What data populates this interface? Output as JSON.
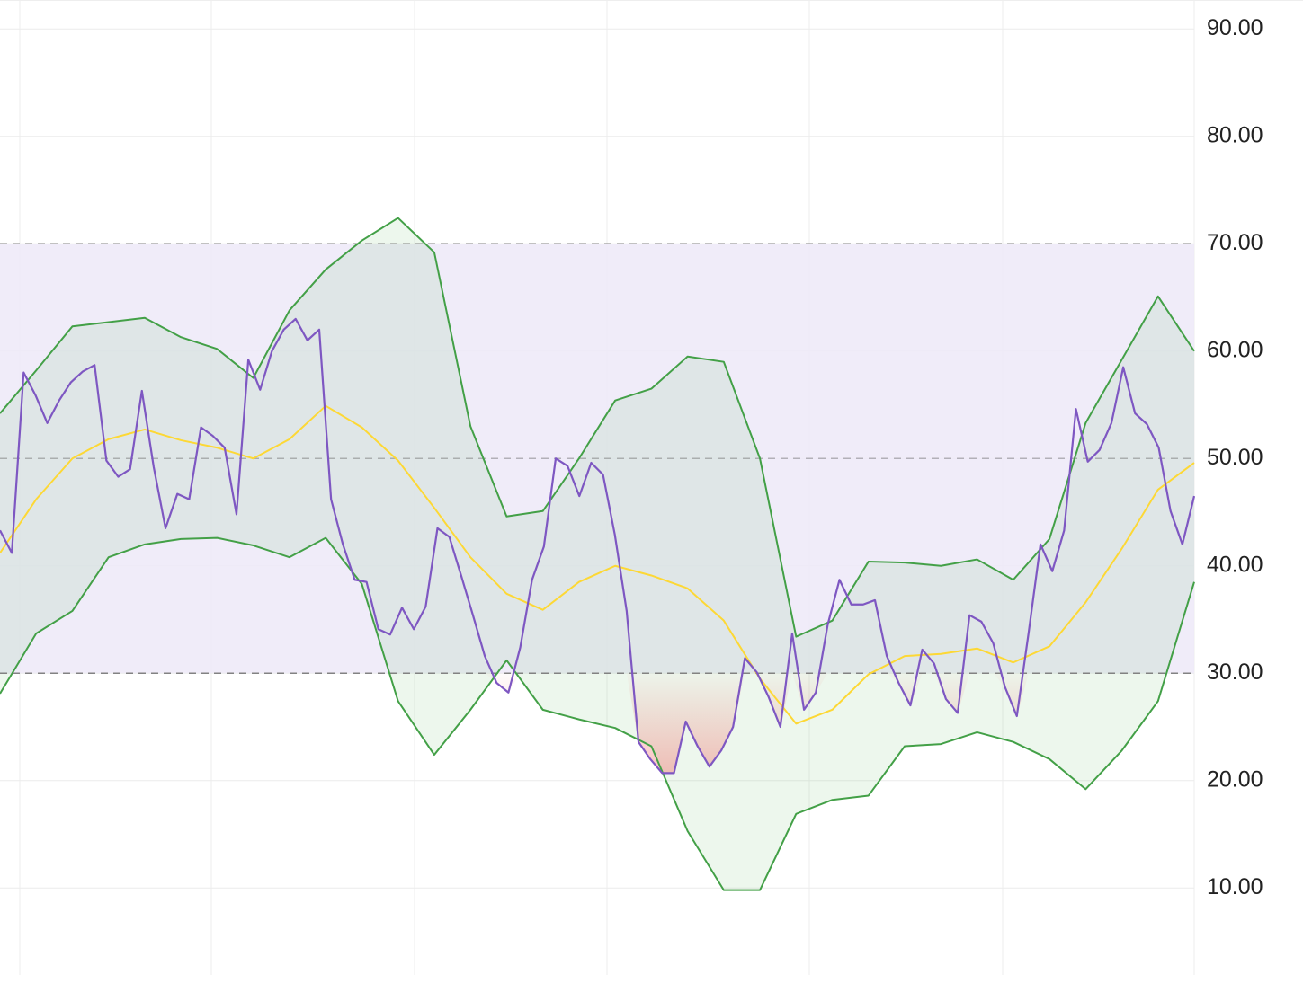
{
  "chart_data": {
    "type": "line",
    "ylim": [
      1.9,
      92.7
    ],
    "yticks": [
      {
        "value": 90,
        "label": "90.00"
      },
      {
        "value": 80,
        "label": "80.00"
      },
      {
        "value": 70,
        "label": "70.00"
      },
      {
        "value": 60,
        "label": "60.00"
      },
      {
        "value": 50,
        "label": "50.00"
      },
      {
        "value": 40,
        "label": "40.00"
      },
      {
        "value": 30,
        "label": "30.00"
      },
      {
        "value": 20,
        "label": "20.00"
      },
      {
        "value": 10,
        "label": "10.00"
      }
    ],
    "grid": true,
    "levels": [
      70,
      50,
      30
    ],
    "level_zone_color": "#ede9f8",
    "band_color": "#4caf50",
    "oversold_color": "#ef5350",
    "series": [
      {
        "color": "#7e57c2",
        "values": [
          43.3,
          41.2,
          58,
          55.9,
          53.3,
          55.4,
          57.1,
          58.1,
          58.7,
          49.8,
          48.3,
          49,
          56.3,
          49.2,
          43.5,
          46.7,
          46.2,
          52.9,
          52.1,
          51,
          44.8,
          59.2,
          56.4,
          60,
          62,
          63,
          61,
          62,
          46.2,
          42,
          38.7,
          38.5,
          34.1,
          33.6,
          36.1,
          34.1,
          36.2,
          43.5,
          42.7,
          39.1,
          35.4,
          31.6,
          29.1,
          28.2,
          32.4,
          38.7,
          41.8,
          50,
          49.3,
          46.5,
          49.6,
          48.5,
          42.9,
          35.8,
          23.6,
          22,
          20.7,
          20.7,
          25.5,
          23.2,
          21.3,
          22.8,
          25,
          31.4,
          30.1,
          27.8,
          25,
          33.7,
          26.6,
          28.2,
          34.5,
          38.7,
          36.4,
          36.4,
          36.8,
          31.6,
          29.1,
          27,
          32.2,
          30.9,
          27.6,
          26.3,
          35.4,
          34.8,
          32.8,
          28.7,
          26,
          33.8,
          42,
          39.5,
          43.3,
          54.6,
          49.7,
          50.8,
          53.3,
          58.5,
          54.2,
          53.2,
          51,
          45.1,
          42,
          46.5
        ]
      },
      {
        "color": "#fdd835",
        "values": [
          41.2,
          46.2,
          50,
          51.8,
          52.7,
          51.7,
          51,
          50,
          51.8,
          54.9,
          52.9,
          49.8,
          45.4,
          40.8,
          37.4,
          35.9,
          38.5,
          40,
          39.1,
          37.9,
          34.9,
          29.5,
          25.3,
          26.6,
          29.9,
          31.6,
          31.8,
          32.3,
          31,
          32.5,
          36.6,
          41.6,
          47.1,
          49.6
        ]
      },
      {
        "color": "#43a047",
        "values": [
          54.2,
          58.2,
          62.3,
          62.7,
          63.1,
          61.3,
          60.2,
          57.5,
          63.8,
          67.6,
          70.3,
          72.4,
          69.2,
          53,
          44.6,
          45.1,
          50,
          55.4,
          56.5,
          59.5,
          59,
          50,
          33.4,
          34.9,
          40.4,
          40.3,
          40,
          40.6,
          38.7,
          42.5,
          53.3,
          59.2,
          65.1,
          60
        ]
      },
      {
        "color": "#43a047",
        "values": [
          28.1,
          33.7,
          35.8,
          40.8,
          42,
          42.5,
          42.6,
          41.9,
          40.8,
          42.6,
          38.3,
          27.4,
          22.4,
          26.6,
          31.2,
          26.6,
          25.7,
          24.9,
          23.2,
          15.3,
          9.8,
          9.8,
          16.9,
          18.2,
          18.6,
          23.2,
          23.4,
          24.5,
          23.6,
          22,
          19.2,
          22.8,
          27.4,
          38.5
        ]
      }
    ]
  }
}
